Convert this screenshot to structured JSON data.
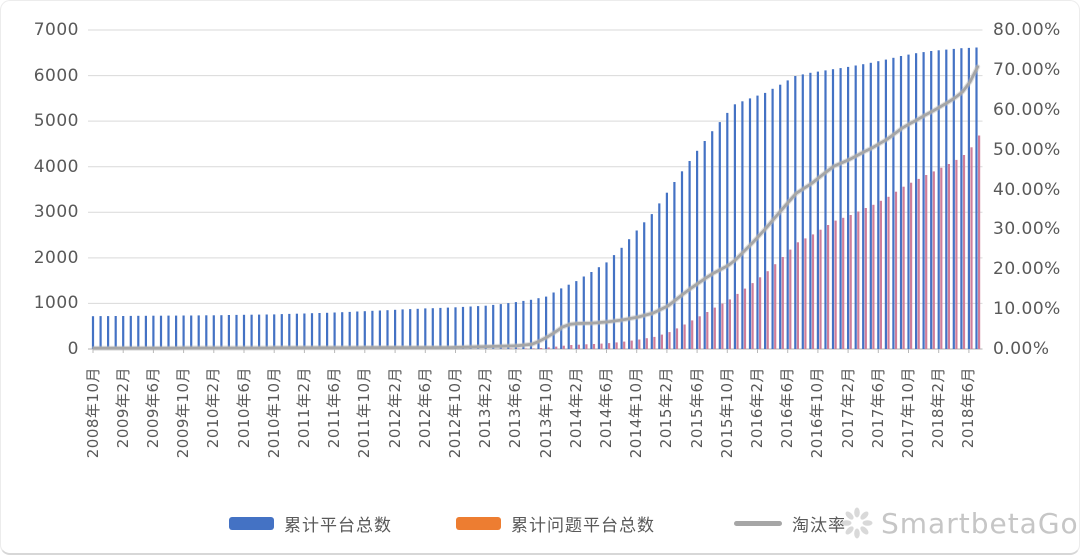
{
  "watermark": {
    "text": "SmartbetaGo"
  },
  "chart_data": {
    "type": "combo (bar + line)",
    "title": "",
    "x_interval": "monthly",
    "x_start": "2008年10月",
    "x_end": "2018年7月",
    "x_tick_labels": [
      "2008年10月",
      "2009年2月",
      "2009年6月",
      "2009年10月",
      "2010年2月",
      "2010年6月",
      "2010年10月",
      "2011年2月",
      "2011年6月",
      "2011年10月",
      "2012年2月",
      "2012年6月",
      "2012年10月",
      "2013年2月",
      "2013年6月",
      "2013年10月",
      "2014年2月",
      "2014年6月",
      "2014年10月",
      "2015年2月",
      "2015年6月",
      "2015年10月",
      "2016年2月",
      "2016年6月",
      "2016年10月",
      "2017年2月",
      "2017年6月",
      "2017年10月",
      "2018年2月",
      "2018年6月"
    ],
    "axes": {
      "left": {
        "min": 0,
        "max": 7000,
        "tick_step": 1000,
        "tick_labels": [
          0,
          1000,
          2000,
          3000,
          4000,
          5000,
          6000,
          7000
        ]
      },
      "right": {
        "min": 0,
        "max": 80,
        "tick_step": 10,
        "format": "percent",
        "tick_labels": [
          "0.00%",
          "10.00%",
          "20.00%",
          "30.00%",
          "40.00%",
          "50.00%",
          "60.00%",
          "70.00%",
          "80.00%"
        ]
      }
    },
    "grid": true,
    "legend_position": "bottom",
    "series": [
      {
        "name": "累计平台总数",
        "type": "bar",
        "axis": "left",
        "color": "#4472C4",
        "values": [
          720,
          721,
          722,
          724,
          725,
          726,
          728,
          729,
          730,
          731,
          732,
          734,
          735,
          736,
          738,
          739,
          740,
          742,
          745,
          748,
          750,
          752,
          755,
          758,
          760,
          765,
          770,
          775,
          780,
          785,
          790,
          795,
          800,
          808,
          815,
          822,
          830,
          838,
          845,
          852,
          860,
          868,
          875,
          882,
          890,
          896,
          902,
          909,
          915,
          924,
          932,
          941,
          950,
          968,
          985,
          1008,
          1030,
          1055,
          1080,
          1115,
          1150,
          1240,
          1330,
          1410,
          1490,
          1590,
          1690,
          1795,
          1900,
          2060,
          2220,
          2410,
          2600,
          2780,
          2960,
          3195,
          3430,
          3665,
          3900,
          4125,
          4350,
          4565,
          4780,
          4980,
          5180,
          5370,
          5435,
          5500,
          5560,
          5620,
          5710,
          5800,
          5895,
          5990,
          6025,
          6060,
          6087,
          6113,
          6140,
          6165,
          6190,
          6220,
          6250,
          6280,
          6315,
          6350,
          6390,
          6430,
          6460,
          6490,
          6515,
          6540,
          6555,
          6570,
          6585,
          6600,
          6608,
          6617
        ]
      },
      {
        "name": "累计问题平台总数",
        "type": "bar",
        "axis": "left",
        "color": "#ED7D31",
        "bar_render_color": "#CF7E9A",
        "values": [
          1,
          1,
          1,
          1,
          1,
          1,
          1,
          1,
          1,
          1,
          1,
          1,
          2,
          2,
          2,
          2,
          2,
          2,
          2,
          2,
          2,
          2,
          2,
          2,
          2,
          2,
          2,
          2,
          2,
          2,
          2,
          2,
          2,
          2,
          2,
          2,
          3,
          3,
          3,
          3,
          3,
          3,
          3,
          3,
          3,
          3,
          3,
          3,
          4,
          4,
          5,
          5,
          6,
          6,
          7,
          8,
          8,
          11,
          13,
          22,
          35,
          52,
          73,
          87,
          95,
          103,
          110,
          119,
          129,
          145,
          162,
          184,
          208,
          236,
          266,
          316,
          370,
          451,
          538,
          627,
          718,
          813,
          908,
          996,
          1088,
          1208,
          1326,
          1447,
          1573,
          1708,
          1861,
          2018,
          2181,
          2342,
          2428,
          2515,
          2617,
          2720,
          2818,
          2879,
          2940,
          3017,
          3094,
          3165,
          3252,
          3340,
          3451,
          3562,
          3650,
          3732,
          3818,
          3898,
          3979,
          4060,
          4149,
          4257,
          4427,
          4685
        ]
      },
      {
        "name": "淘汰率",
        "type": "line",
        "axis": "right",
        "color": "#A6A6A6",
        "unit": "%",
        "values": [
          0.2,
          0.2,
          0.2,
          0.2,
          0.2,
          0.2,
          0.2,
          0.2,
          0.2,
          0.2,
          0.2,
          0.2,
          0.25,
          0.25,
          0.25,
          0.25,
          0.25,
          0.25,
          0.25,
          0.25,
          0.25,
          0.25,
          0.25,
          0.25,
          0.3,
          0.3,
          0.3,
          0.3,
          0.3,
          0.3,
          0.3,
          0.3,
          0.3,
          0.3,
          0.3,
          0.3,
          0.35,
          0.35,
          0.35,
          0.35,
          0.35,
          0.35,
          0.35,
          0.35,
          0.35,
          0.35,
          0.35,
          0.35,
          0.4,
          0.45,
          0.5,
          0.55,
          0.6,
          0.65,
          0.7,
          0.75,
          0.8,
          1.0,
          1.2,
          2.0,
          3.0,
          4.2,
          5.5,
          6.2,
          6.4,
          6.45,
          6.5,
          6.65,
          6.8,
          7.05,
          7.3,
          7.65,
          8.0,
          8.5,
          9.0,
          9.9,
          10.8,
          12.3,
          13.8,
          15.2,
          16.5,
          17.8,
          19.0,
          20.0,
          21.0,
          22.5,
          24.4,
          26.3,
          28.3,
          30.4,
          32.6,
          34.8,
          37.0,
          39.1,
          40.3,
          41.5,
          43.0,
          44.5,
          45.9,
          46.7,
          47.5,
          48.5,
          49.5,
          50.4,
          51.5,
          52.6,
          54.0,
          55.4,
          56.5,
          57.5,
          58.6,
          59.6,
          60.7,
          61.8,
          63.0,
          64.5,
          67.0,
          70.8
        ]
      }
    ]
  }
}
